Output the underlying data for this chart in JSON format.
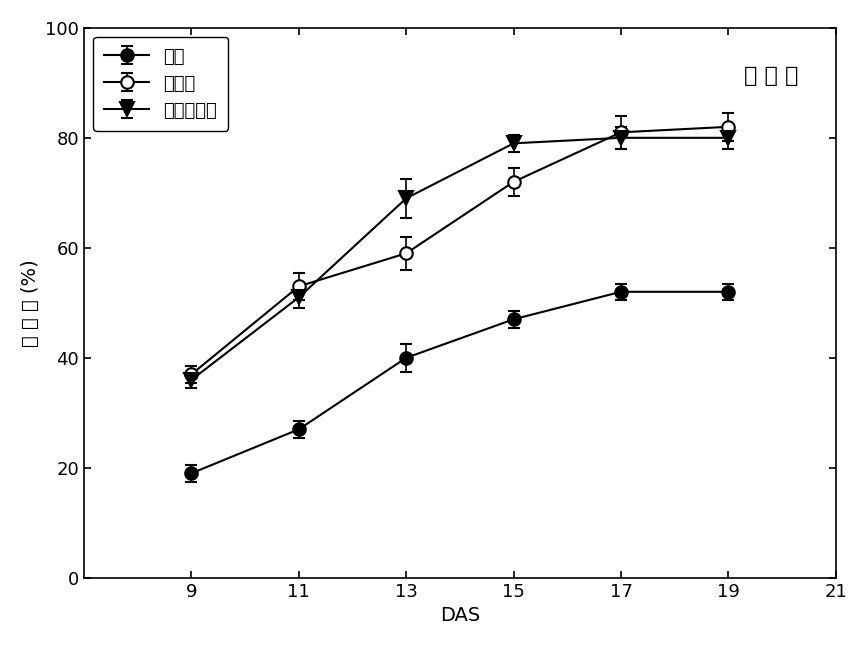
{
  "x": [
    9,
    11,
    13,
    15,
    17,
    19
  ],
  "xlim": [
    7,
    21
  ],
  "ylim": [
    0,
    100
  ],
  "xticks": [
    9,
    11,
    13,
    15,
    17,
    19,
    21
  ],
  "yticks": [
    0,
    20,
    40,
    60,
    80,
    100
  ],
  "xlabel": "DAS",
  "ylabel": "发 芽 率 (%)",
  "annotation": "湿 直 播",
  "legend_labels": [
    "对照",
    "硒引发",
    "水杨酸引发"
  ],
  "series": [
    {
      "label_idx": 0,
      "y": [
        19,
        27,
        40,
        47,
        52,
        52
      ],
      "yerr": [
        1.5,
        1.5,
        2.5,
        1.5,
        1.5,
        1.5
      ],
      "marker": "o",
      "markerfacecolor": "black",
      "markeredgecolor": "black",
      "color": "black",
      "markersize": 9
    },
    {
      "label_idx": 1,
      "y": [
        37,
        53,
        59,
        72,
        81,
        82
      ],
      "yerr": [
        1.5,
        2.5,
        3.0,
        2.5,
        3.0,
        2.5
      ],
      "marker": "o",
      "markerfacecolor": "white",
      "markeredgecolor": "black",
      "color": "black",
      "markersize": 9
    },
    {
      "label_idx": 2,
      "y": [
        36,
        51,
        69,
        79,
        80,
        80
      ],
      "yerr": [
        1.5,
        2.0,
        3.5,
        1.5,
        2.0,
        2.0
      ],
      "marker": "v",
      "markerfacecolor": "black",
      "markeredgecolor": "black",
      "color": "black",
      "markersize": 10
    }
  ],
  "figsize": [
    8.68,
    6.46
  ],
  "dpi": 100,
  "background_color": "#ffffff",
  "linewidth": 1.5,
  "elinewidth": 1.2,
  "capsize": 4
}
